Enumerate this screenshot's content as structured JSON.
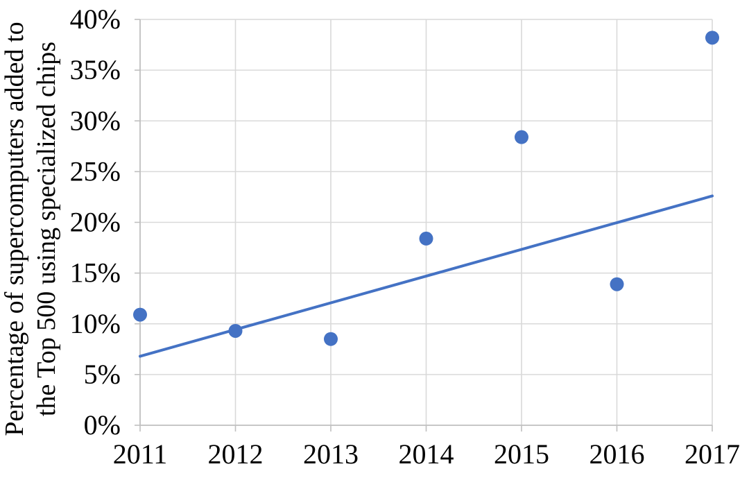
{
  "chart_data": {
    "type": "scatter",
    "ylabel": "Percentage of supercomputers added to the Top 500 using specialized chips",
    "ylabel_lines": [
      "Percentage of supercomputers added to",
      "the Top 500 using specialized chips"
    ],
    "x": [
      2011,
      2012,
      2013,
      2014,
      2015,
      2016,
      2017
    ],
    "x_tick_labels": [
      "2011",
      "2012",
      "2013",
      "2014",
      "2015",
      "2016",
      "2017"
    ],
    "values": [
      10.9,
      9.3,
      8.5,
      18.4,
      28.4,
      13.9,
      38.2
    ],
    "y_ticks": [
      0,
      5,
      10,
      15,
      20,
      25,
      30,
      35,
      40
    ],
    "y_tick_labels": [
      "0%",
      "5%",
      "10%",
      "15%",
      "20%",
      "25%",
      "30%",
      "35%",
      "40%"
    ],
    "xlim": [
      2011,
      2017
    ],
    "ylim": [
      0,
      40
    ],
    "grid": true,
    "legend": "none",
    "trendline": {
      "type": "linear",
      "x_start": 2011,
      "y_start": 6.8,
      "x_end": 2017,
      "y_end": 22.6
    },
    "colors": {
      "marker": "#4472C4",
      "trendline": "#4472C4",
      "gridline": "#D9D9D9",
      "axis": "#BFBFBF",
      "text": "#000000",
      "background": "#FFFFFF"
    }
  }
}
